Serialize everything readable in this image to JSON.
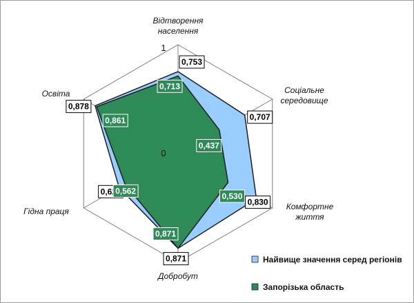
{
  "chart_data": {
    "type": "radar",
    "title": "",
    "categories": [
      [
        "Відтворення",
        "населення"
      ],
      [
        "Соціальне",
        "середовище"
      ],
      [
        "Комфортне",
        "життя"
      ],
      [
        "Добробут"
      ],
      [
        "Гідна праця"
      ],
      [
        "Освіта"
      ]
    ],
    "rlim": [
      0,
      1
    ],
    "ticks": [
      "0",
      "1"
    ],
    "grid": true,
    "legend_position": "bottom-right",
    "series": [
      {
        "name": "Найвище значення серед регіонів",
        "values": [
          0.753,
          0.707,
          0.83,
          0.871,
          0.624,
          0.878
        ],
        "labels": [
          "0,753",
          "0,707",
          "0,830",
          "0,871",
          "0,624",
          "0,878"
        ],
        "color": "#99ccff"
      },
      {
        "name": "Запорізька область",
        "values": [
          0.713,
          0.437,
          0.53,
          0.871,
          0.562,
          0.861
        ],
        "labels": [
          "0,713",
          "0,437",
          "0,530",
          "0,871",
          "0,562",
          "0,861"
        ],
        "color": "#2e8b57"
      }
    ]
  }
}
